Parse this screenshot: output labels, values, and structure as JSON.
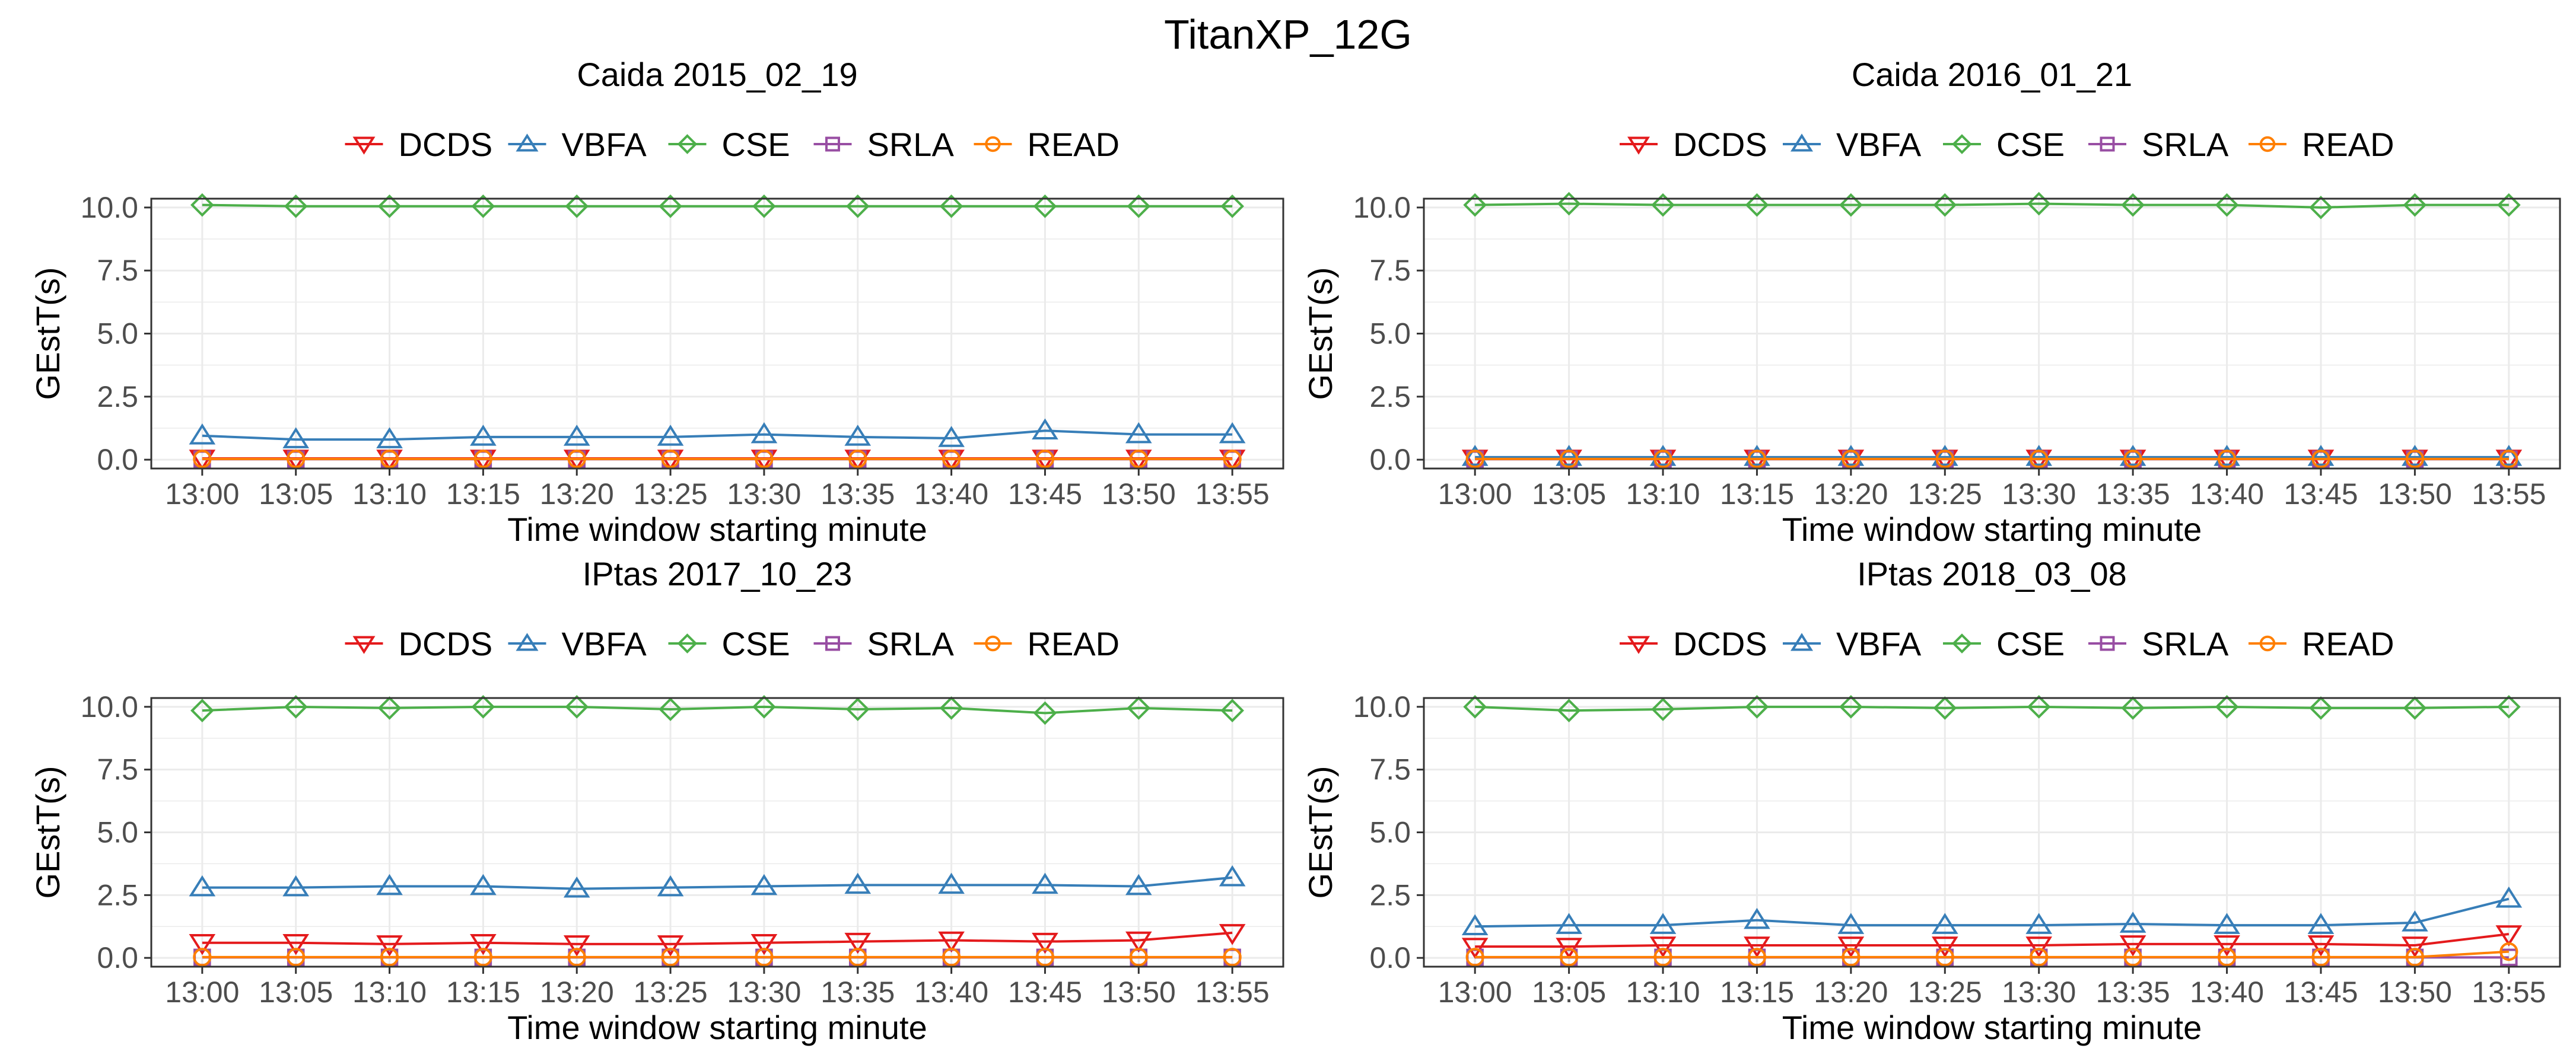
{
  "figure_title": "TitanXP_12G",
  "colors": {
    "DCDS": "#e41a1c",
    "VBFA": "#377eb8",
    "CSE": "#4daf4a",
    "SRLA": "#984ea3",
    "READ": "#ff7f00",
    "grid": "#ebebeb",
    "border": "#333333"
  },
  "chart_data": [
    {
      "type": "line",
      "title": "Caida 2015_02_19",
      "xlabel": "Time window starting minute",
      "ylabel": "GEstT(s)",
      "ylim": [
        0,
        10
      ],
      "yticks": [
        "0.0",
        "2.5",
        "5.0",
        "7.5",
        "10.0"
      ],
      "categories": [
        "13:00",
        "13:05",
        "13:10",
        "13:15",
        "13:20",
        "13:25",
        "13:30",
        "13:35",
        "13:40",
        "13:45",
        "13:50",
        "13:55"
      ],
      "legend": [
        "DCDS",
        "VBFA",
        "CSE",
        "SRLA",
        "READ"
      ],
      "series": [
        {
          "name": "DCDS",
          "marker": "triangle-down",
          "values": [
            0.05,
            0.05,
            0.05,
            0.05,
            0.05,
            0.05,
            0.05,
            0.05,
            0.05,
            0.05,
            0.05,
            0.05
          ]
        },
        {
          "name": "VBFA",
          "marker": "triangle-up",
          "values": [
            0.95,
            0.8,
            0.8,
            0.9,
            0.9,
            0.9,
            1.0,
            0.9,
            0.85,
            1.15,
            1.0,
            1.0
          ]
        },
        {
          "name": "CSE",
          "marker": "diamond",
          "values": [
            10.1,
            10.05,
            10.05,
            10.05,
            10.05,
            10.05,
            10.05,
            10.05,
            10.05,
            10.05,
            10.05,
            10.05
          ]
        },
        {
          "name": "SRLA",
          "marker": "square",
          "values": [
            0.02,
            0.02,
            0.02,
            0.02,
            0.02,
            0.02,
            0.02,
            0.02,
            0.02,
            0.02,
            0.02,
            0.02
          ]
        },
        {
          "name": "READ",
          "marker": "circle",
          "values": [
            0.03,
            0.03,
            0.03,
            0.03,
            0.03,
            0.03,
            0.03,
            0.03,
            0.03,
            0.03,
            0.03,
            0.03
          ]
        }
      ]
    },
    {
      "type": "line",
      "title": "Caida 2016_01_21",
      "xlabel": "Time window starting minute",
      "ylabel": "GEstT(s)",
      "ylim": [
        0,
        10
      ],
      "yticks": [
        "0.0",
        "2.5",
        "5.0",
        "7.5",
        "10.0"
      ],
      "categories": [
        "13:00",
        "13:05",
        "13:10",
        "13:15",
        "13:20",
        "13:25",
        "13:30",
        "13:35",
        "13:40",
        "13:45",
        "13:50",
        "13:55"
      ],
      "legend": [
        "DCDS",
        "VBFA",
        "CSE",
        "SRLA",
        "READ"
      ],
      "series": [
        {
          "name": "DCDS",
          "marker": "triangle-down",
          "values": [
            0.05,
            0.05,
            0.05,
            0.05,
            0.05,
            0.05,
            0.05,
            0.05,
            0.05,
            0.05,
            0.05,
            0.05
          ]
        },
        {
          "name": "VBFA",
          "marker": "triangle-up",
          "values": [
            0.1,
            0.1,
            0.1,
            0.1,
            0.1,
            0.1,
            0.1,
            0.1,
            0.1,
            0.1,
            0.1,
            0.1
          ]
        },
        {
          "name": "CSE",
          "marker": "diamond",
          "values": [
            10.1,
            10.15,
            10.1,
            10.1,
            10.1,
            10.1,
            10.15,
            10.1,
            10.1,
            10.0,
            10.1,
            10.1
          ]
        },
        {
          "name": "SRLA",
          "marker": "square",
          "values": [
            0.02,
            0.02,
            0.02,
            0.02,
            0.02,
            0.02,
            0.02,
            0.02,
            0.02,
            0.02,
            0.02,
            0.02
          ]
        },
        {
          "name": "READ",
          "marker": "circle",
          "values": [
            0.03,
            0.03,
            0.03,
            0.03,
            0.03,
            0.03,
            0.03,
            0.03,
            0.03,
            0.03,
            0.03,
            0.03
          ]
        }
      ]
    },
    {
      "type": "line",
      "title": "IPtas 2017_10_23",
      "xlabel": "Time window starting minute",
      "ylabel": "GEstT(s)",
      "ylim": [
        0,
        10
      ],
      "yticks": [
        "0.0",
        "2.5",
        "5.0",
        "7.5",
        "10.0"
      ],
      "categories": [
        "13:00",
        "13:05",
        "13:10",
        "13:15",
        "13:20",
        "13:25",
        "13:30",
        "13:35",
        "13:40",
        "13:45",
        "13:50",
        "13:55"
      ],
      "legend": [
        "DCDS",
        "VBFA",
        "CSE",
        "SRLA",
        "READ"
      ],
      "series": [
        {
          "name": "DCDS",
          "marker": "triangle-down",
          "values": [
            0.6,
            0.6,
            0.55,
            0.6,
            0.55,
            0.55,
            0.6,
            0.65,
            0.7,
            0.65,
            0.7,
            1.0
          ]
        },
        {
          "name": "VBFA",
          "marker": "triangle-up",
          "values": [
            2.8,
            2.8,
            2.85,
            2.85,
            2.75,
            2.8,
            2.85,
            2.9,
            2.9,
            2.9,
            2.85,
            3.2
          ]
        },
        {
          "name": "CSE",
          "marker": "diamond",
          "values": [
            9.85,
            10.0,
            9.95,
            10.0,
            10.0,
            9.9,
            10.0,
            9.9,
            9.95,
            9.75,
            9.95,
            9.85
          ]
        },
        {
          "name": "SRLA",
          "marker": "square",
          "values": [
            0.02,
            0.02,
            0.02,
            0.02,
            0.02,
            0.02,
            0.02,
            0.02,
            0.02,
            0.02,
            0.02,
            0.02
          ]
        },
        {
          "name": "READ",
          "marker": "circle",
          "values": [
            0.03,
            0.03,
            0.03,
            0.03,
            0.03,
            0.03,
            0.03,
            0.03,
            0.03,
            0.03,
            0.03,
            0.03
          ]
        }
      ]
    },
    {
      "type": "line",
      "title": "IPtas 2018_03_08",
      "xlabel": "Time window starting minute",
      "ylabel": "GEstT(s)",
      "ylim": [
        0,
        10
      ],
      "yticks": [
        "0.0",
        "2.5",
        "5.0",
        "7.5",
        "10.0"
      ],
      "categories": [
        "13:00",
        "13:05",
        "13:10",
        "13:15",
        "13:20",
        "13:25",
        "13:30",
        "13:35",
        "13:40",
        "13:45",
        "13:50",
        "13:55"
      ],
      "legend": [
        "DCDS",
        "VBFA",
        "CSE",
        "SRLA",
        "READ"
      ],
      "series": [
        {
          "name": "DCDS",
          "marker": "triangle-down",
          "values": [
            0.45,
            0.45,
            0.5,
            0.5,
            0.5,
            0.5,
            0.5,
            0.55,
            0.55,
            0.55,
            0.5,
            0.95
          ]
        },
        {
          "name": "VBFA",
          "marker": "triangle-up",
          "values": [
            1.25,
            1.3,
            1.3,
            1.5,
            1.3,
            1.3,
            1.3,
            1.35,
            1.3,
            1.3,
            1.4,
            2.35
          ]
        },
        {
          "name": "CSE",
          "marker": "diamond",
          "values": [
            10.0,
            9.85,
            9.9,
            10.0,
            10.0,
            9.95,
            10.0,
            9.95,
            10.0,
            9.95,
            9.95,
            10.0
          ]
        },
        {
          "name": "SRLA",
          "marker": "square",
          "values": [
            0.02,
            0.02,
            0.02,
            0.02,
            0.02,
            0.02,
            0.02,
            0.02,
            0.02,
            0.02,
            0.02,
            0.02
          ]
        },
        {
          "name": "READ",
          "marker": "circle",
          "values": [
            0.03,
            0.03,
            0.03,
            0.03,
            0.03,
            0.03,
            0.03,
            0.03,
            0.03,
            0.03,
            0.03,
            0.25
          ]
        }
      ]
    }
  ]
}
